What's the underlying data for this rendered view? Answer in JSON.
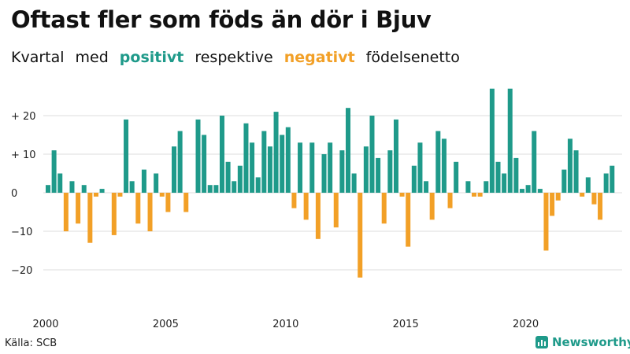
{
  "header": {
    "title": "Oftast fler som föds än dör i Bjuv",
    "subtitle_a": "Kvartal",
    "subtitle_b": "med",
    "subtitle_pos": "positivt",
    "subtitle_c": "respektive",
    "subtitle_neg": "negativt",
    "subtitle_d": "födelsenetto"
  },
  "footer": {
    "source": "Källa: SCB",
    "brand": "Newsworthy",
    "brand_icon": "newsworthy-logo-icon"
  },
  "colors": {
    "positive": "#1f9a8a",
    "negative": "#f2a027",
    "grid": "#dcdcdc"
  },
  "chart_data": {
    "type": "bar",
    "title": "Oftast fler som föds än dör i Bjuv",
    "subtitle": "Kvartal med positivt respektive negativt födelsenetto",
    "xlabel": "",
    "ylabel": "",
    "x_start": 2000,
    "x_ticks": [
      "2000",
      "2005",
      "2010",
      "2015",
      "2020"
    ],
    "y_ticks": [
      20,
      10,
      0,
      -10,
      -20
    ],
    "y_tick_labels": [
      "+ 20",
      "+ 10",
      "0",
      "−10",
      "−20"
    ],
    "ylim": [
      -28,
      28
    ],
    "grid": true,
    "values": [
      2,
      11,
      5,
      -10,
      3,
      -8,
      2,
      -13,
      -1,
      1,
      0,
      -11,
      -1,
      19,
      3,
      -8,
      6,
      -10,
      5,
      -1,
      -5,
      12,
      16,
      -5,
      0,
      19,
      15,
      2,
      2,
      20,
      8,
      3,
      7,
      18,
      13,
      4,
      16,
      12,
      21,
      15,
      17,
      -4,
      13,
      -7,
      13,
      -12,
      10,
      13,
      -9,
      11,
      22,
      5,
      -22,
      12,
      20,
      9,
      -8,
      11,
      19,
      -1,
      -14,
      7,
      13,
      3,
      -7,
      16,
      14,
      -4,
      8,
      0,
      3,
      -1,
      -1,
      3,
      27,
      8,
      5,
      27,
      9,
      1,
      2,
      16,
      1,
      -15,
      -6,
      -2,
      6,
      14,
      11,
      -1,
      4,
      -3,
      -7,
      5,
      7
    ]
  }
}
